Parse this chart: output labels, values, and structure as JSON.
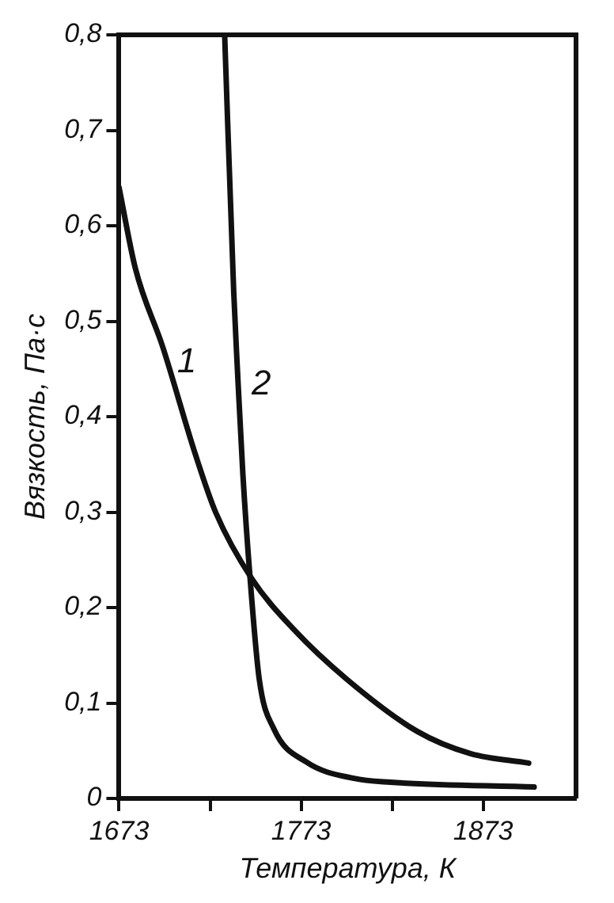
{
  "chart_data": {
    "type": "line",
    "xlabel": "Температура, К",
    "ylabel": "Вязкость, Па·с",
    "xlim": [
      1673,
      1924
    ],
    "ylim": [
      0,
      0.8
    ],
    "xticks": [
      1673,
      {
        "value": 1723,
        "label": null
      },
      1773,
      {
        "value": 1823,
        "label": null
      },
      1873
    ],
    "yticks": [
      {
        "value": 0,
        "label": "0"
      },
      {
        "value": 0.1,
        "label": "0,1"
      },
      {
        "value": 0.2,
        "label": "0,2"
      },
      {
        "value": 0.3,
        "label": "0,3"
      },
      {
        "value": 0.4,
        "label": "0,4"
      },
      {
        "value": 0.5,
        "label": "0,5"
      },
      {
        "value": 0.6,
        "label": "0,6"
      },
      {
        "value": 0.7,
        "label": "0,7"
      },
      {
        "value": 0.8,
        "label": "0,8"
      }
    ],
    "grid": false,
    "legend": false,
    "marker": "none",
    "line_style": "solid",
    "series": [
      {
        "name": "1",
        "color": "#111111",
        "x": [
          1673,
          1682,
          1697,
          1715,
          1726,
          1746,
          1769,
          1798,
          1837,
          1866,
          1898
        ],
        "values": [
          0.64,
          0.555,
          0.473,
          0.36,
          0.3,
          0.23,
          0.177,
          0.125,
          0.07,
          0.047,
          0.037
        ]
      },
      {
        "name": "2",
        "color": "#111111",
        "x": [
          1731,
          1736,
          1738,
          1741,
          1745,
          1750,
          1758,
          1776,
          1802,
          1822,
          1901
        ],
        "values": [
          0.8,
          0.53,
          0.45,
          0.34,
          0.23,
          0.125,
          0.073,
          0.038,
          0.021,
          0.017,
          0.012
        ]
      }
    ]
  }
}
